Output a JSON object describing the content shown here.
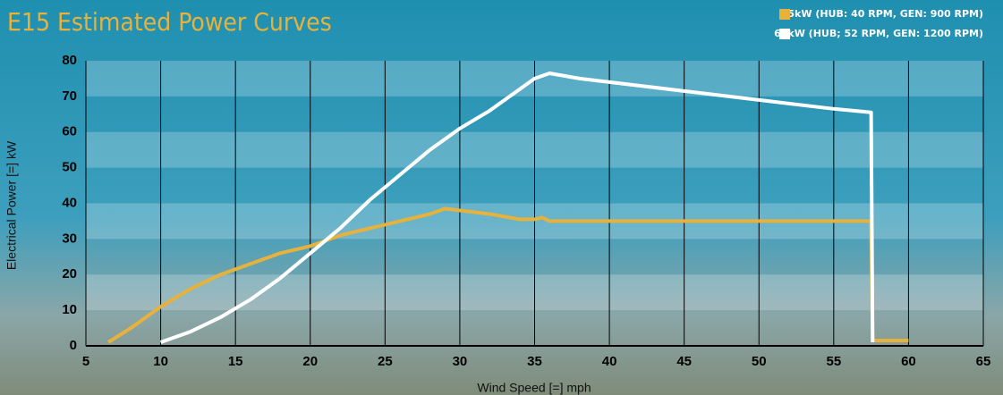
{
  "chart_data": {
    "type": "line",
    "title": "E15 Estimated Power Curves",
    "x_label": "Wind Speed [=] mph",
    "y_label": "Electrical Power [=] kW",
    "xlim": [
      5,
      65
    ],
    "xticks": [
      5,
      10,
      15,
      20,
      25,
      30,
      35,
      40,
      45,
      50,
      55,
      60,
      65
    ],
    "ylim": [
      0,
      80
    ],
    "yticks": [
      0,
      10,
      20,
      30,
      40,
      50,
      60,
      70,
      80
    ],
    "legend": "top-right",
    "series": [
      {
        "name": "35kW (HUB: 40 RPM, GEN: 900 RPM)",
        "color": "#e6b23c",
        "x": [
          6.5,
          8,
          9,
          10,
          12,
          14,
          16,
          18,
          20,
          22,
          24,
          26,
          28,
          29,
          30,
          32,
          34,
          35,
          35.5,
          36,
          40,
          45,
          50,
          55,
          57.5,
          57.6,
          60
        ],
        "values": [
          1,
          5,
          8,
          11,
          16,
          20,
          23,
          26,
          28,
          31,
          33,
          35,
          37,
          38.5,
          38,
          37,
          35.5,
          35.5,
          36,
          35,
          35,
          35,
          35,
          35,
          35,
          1.5,
          1.5
        ]
      },
      {
        "name": "65kW (HUB; 52 RPM, GEN: 1200 RPM)",
        "color": "#ffffff",
        "x": [
          10,
          12,
          14,
          16,
          18,
          20,
          22,
          24,
          26,
          28,
          30,
          32,
          34,
          35,
          36,
          38,
          40,
          45,
          50,
          55,
          57.5,
          57.6
        ],
        "values": [
          1,
          4,
          8,
          13,
          19,
          26,
          33,
          41,
          48,
          55,
          61,
          66,
          72,
          75,
          76.5,
          75,
          74,
          71.5,
          69,
          66.5,
          65.5,
          1
        ]
      }
    ]
  }
}
